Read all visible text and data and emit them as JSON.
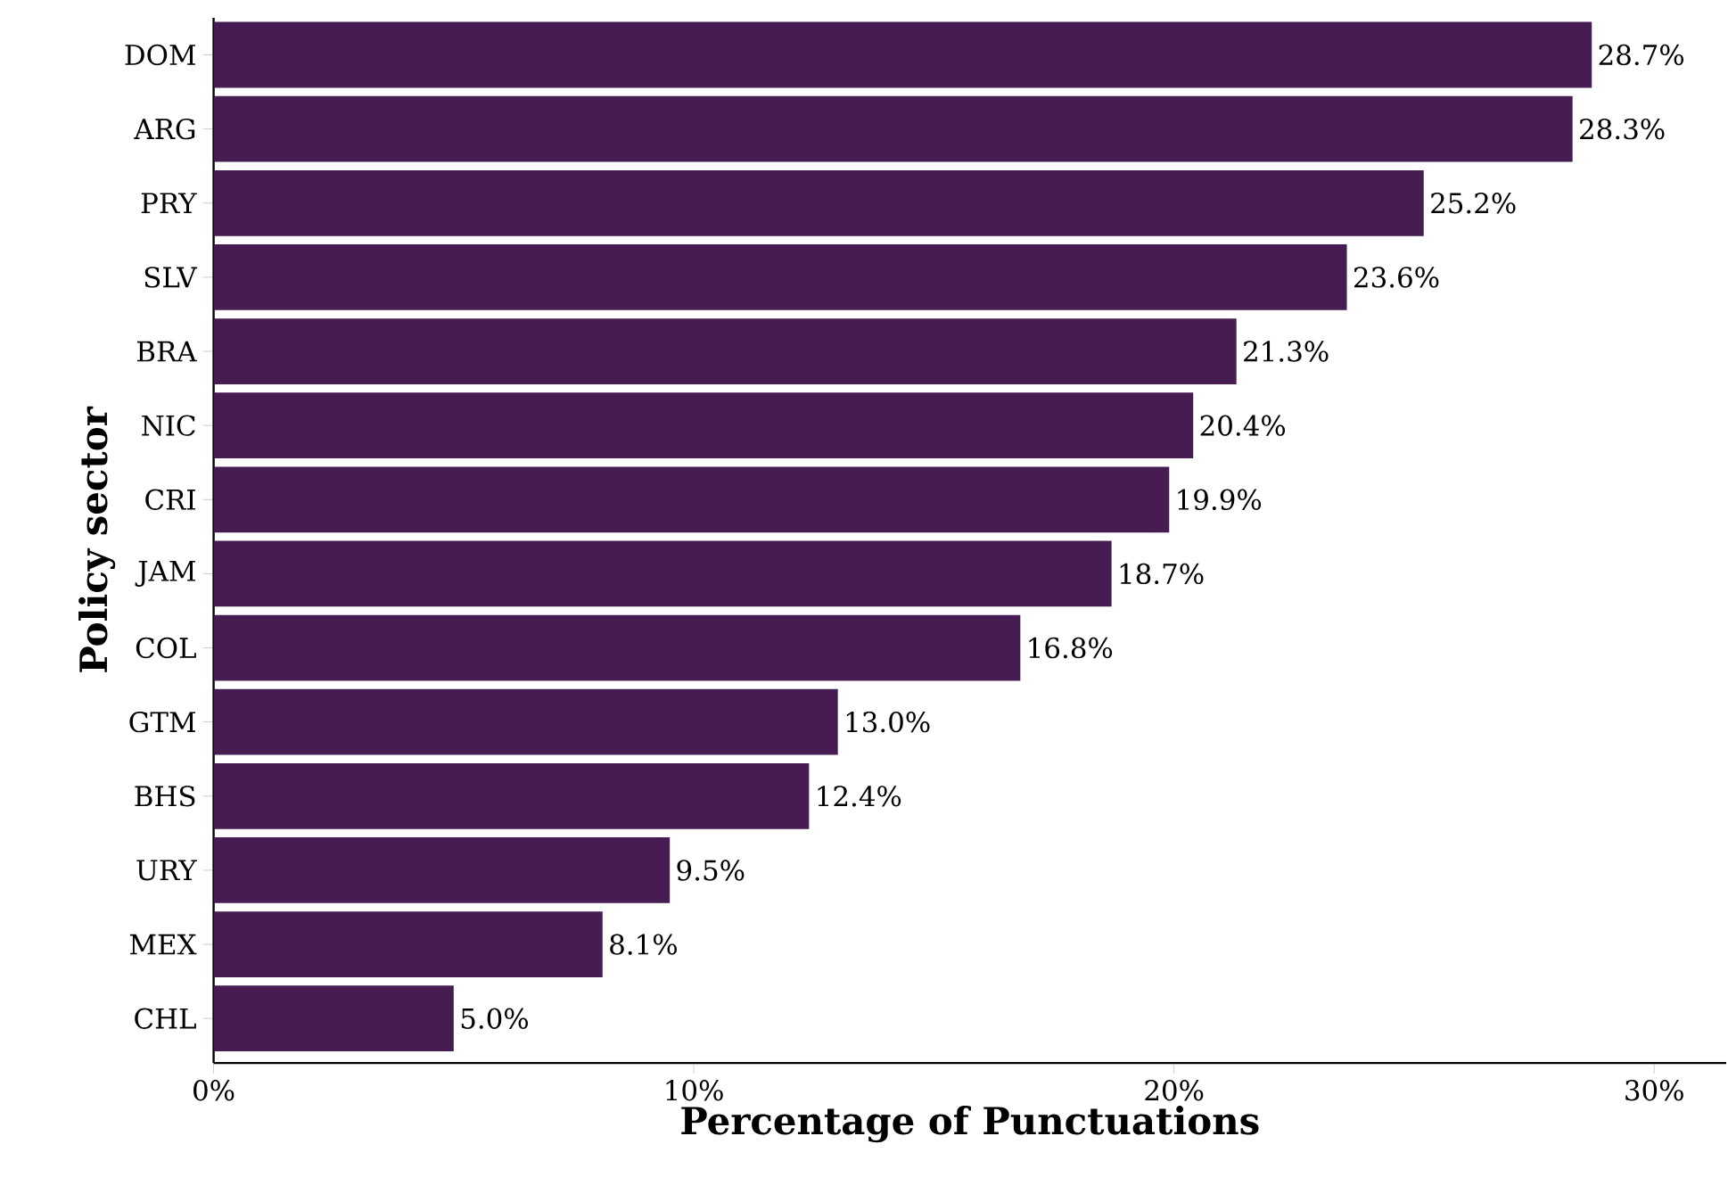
{
  "chart_data": {
    "type": "bar",
    "orientation": "horizontal",
    "xlabel": "Percentage of Punctuations",
    "ylabel": "Policy sector",
    "categories": [
      "DOM",
      "ARG",
      "PRY",
      "SLV",
      "BRA",
      "NIC",
      "CRI",
      "JAM",
      "COL",
      "GTM",
      "BHS",
      "URY",
      "MEX",
      "CHL"
    ],
    "values": [
      28.7,
      28.3,
      25.2,
      23.6,
      21.3,
      20.4,
      19.9,
      18.7,
      16.8,
      13.0,
      12.4,
      9.5,
      8.1,
      5.0
    ],
    "value_labels": [
      "28.7%",
      "28.3%",
      "25.2%",
      "23.6%",
      "21.3%",
      "20.4%",
      "19.9%",
      "18.7%",
      "16.8%",
      "13.0%",
      "12.4%",
      "9.5%",
      "8.1%",
      "5.0%"
    ],
    "color": "#461c52",
    "xlim": [
      0,
      31.5
    ],
    "xticks": [
      {
        "value": 0,
        "label": "0%"
      },
      {
        "value": 10,
        "label": "10%"
      },
      {
        "value": 20,
        "label": "20%"
      },
      {
        "value": 30,
        "label": "30%"
      }
    ]
  }
}
